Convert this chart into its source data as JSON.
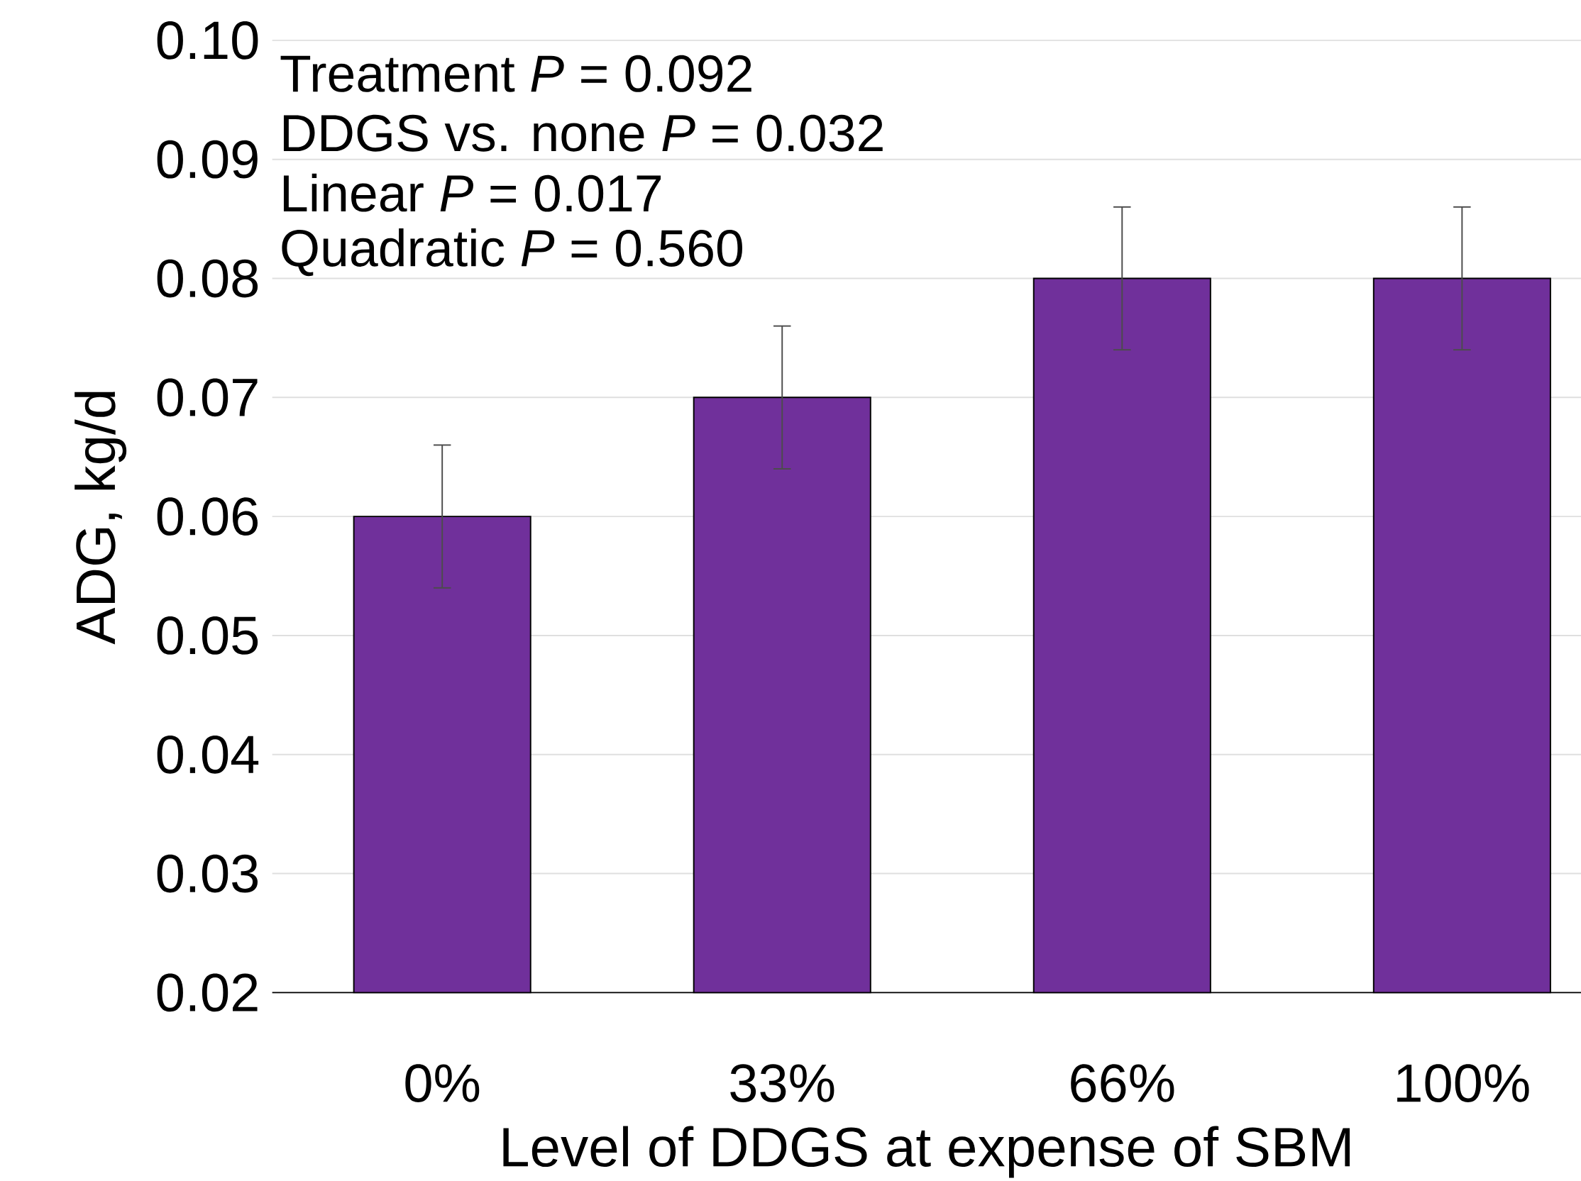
{
  "chart_data": {
    "type": "bar",
    "xlabel": "Level of DDGS at expense of SBM",
    "ylabel": "ADG, kg/d",
    "categories": [
      "0%",
      "33%",
      "66%",
      "100%"
    ],
    "values": [
      0.06,
      0.07,
      0.08,
      0.08
    ],
    "errors": [
      0.006,
      0.006,
      0.006,
      0.006
    ],
    "color": "#70309b",
    "ylim": [
      0.02,
      0.1
    ],
    "yticks": [
      {
        "value": 0.02,
        "label": "0.02"
      },
      {
        "value": 0.03,
        "label": "0.03"
      },
      {
        "value": 0.04,
        "label": "0.04"
      },
      {
        "value": 0.05,
        "label": "0.05"
      },
      {
        "value": 0.06,
        "label": "0.06"
      },
      {
        "value": 0.07,
        "label": "0.07"
      },
      {
        "value": 0.08,
        "label": "0.08"
      },
      {
        "value": 0.09,
        "label": "0.09"
      },
      {
        "value": 0.1,
        "label": "0.10"
      }
    ],
    "grid": "y",
    "annotations": [
      "Treatment *P* = 0.092",
      "DDGS vs. none *P*  = 0.032",
      "Linear *P* = 0.017",
      "Quadratic *P* = 0.560"
    ]
  }
}
